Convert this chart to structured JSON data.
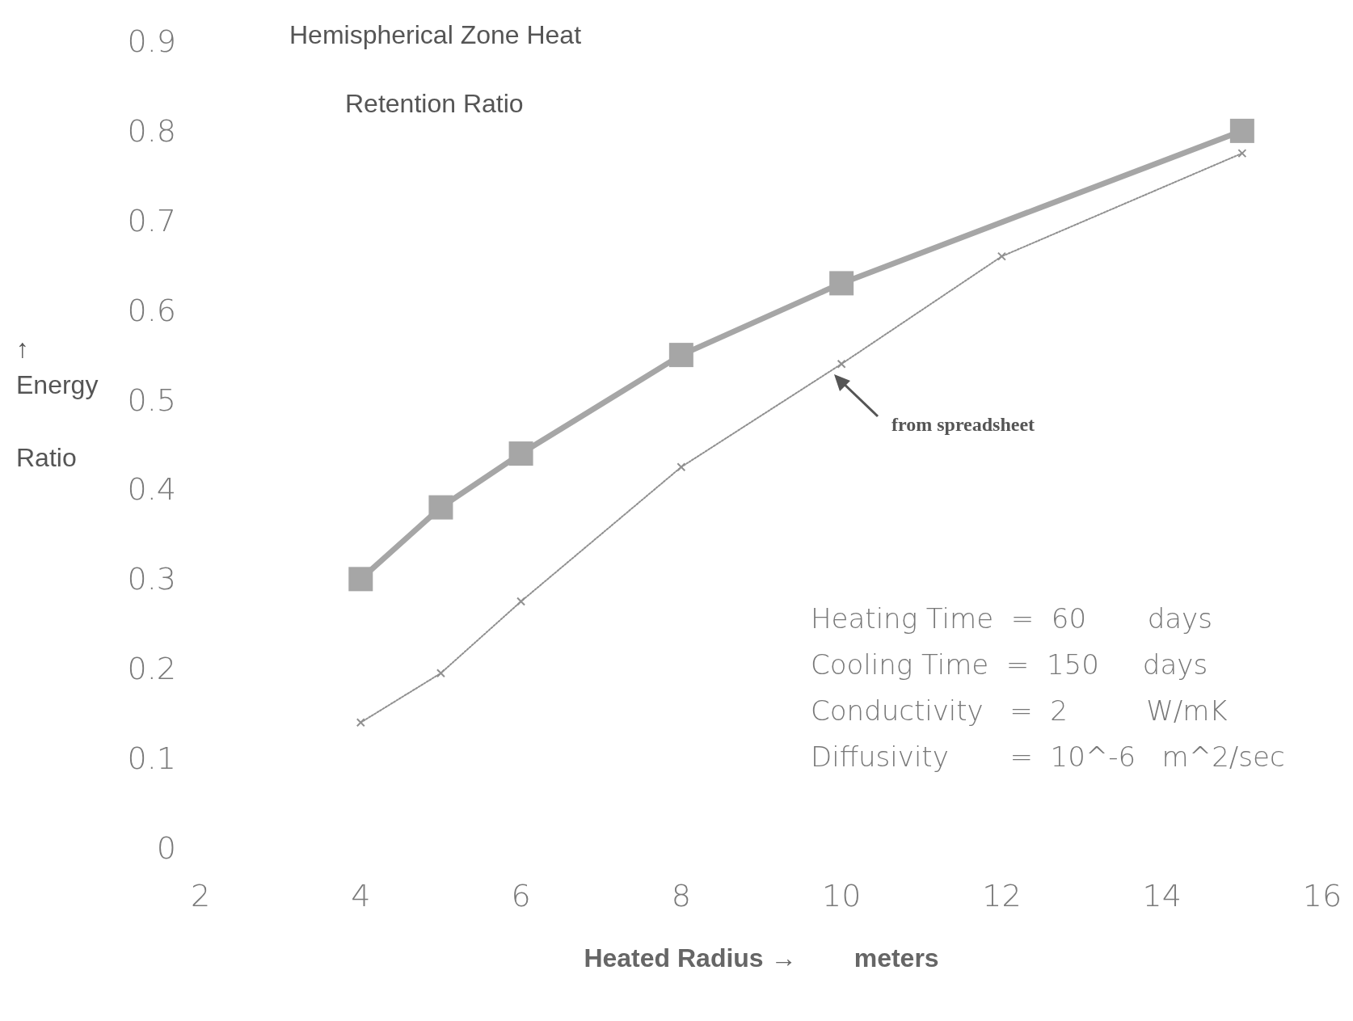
{
  "chart_data": {
    "type": "line",
    "title": "Hemispherical Zone Heat\nRetention Ratio",
    "xlabel": "Heated Radius →        meters",
    "ylabel": "↑\nEnergy\n\nRatio",
    "series": [
      {
        "color": "#a6a6a6",
        "marker": "square",
        "line_style": "solid",
        "x": [
          4,
          5,
          6,
          8,
          10,
          15
        ],
        "values": [
          0.3,
          0.38,
          0.44,
          0.55,
          0.63,
          0.8
        ]
      },
      {
        "color": "#909090",
        "marker": "cross",
        "line_style": "dotted",
        "x": [
          4,
          5,
          6,
          8,
          10,
          12,
          15
        ],
        "values": [
          0.14,
          0.195,
          0.275,
          0.425,
          0.54,
          0.66,
          0.775
        ]
      }
    ],
    "xlim": [
      2,
      16
    ],
    "xticks": [
      2,
      4,
      6,
      8,
      10,
      12,
      14,
      16
    ],
    "ylim": [
      0,
      0.9
    ],
    "yticks": [
      0,
      0.1,
      0.2,
      0.3,
      0.4,
      0.5,
      0.6,
      0.7,
      0.8,
      0.9
    ],
    "grid": false,
    "annotations": [
      "from spreadsheet",
      "Heating Time  =  60       days",
      "Cooling Time  =  150     days",
      "Conductivity   =  2         W/mK",
      "Diffusivity       =  10^-6   m^2/sec"
    ]
  }
}
